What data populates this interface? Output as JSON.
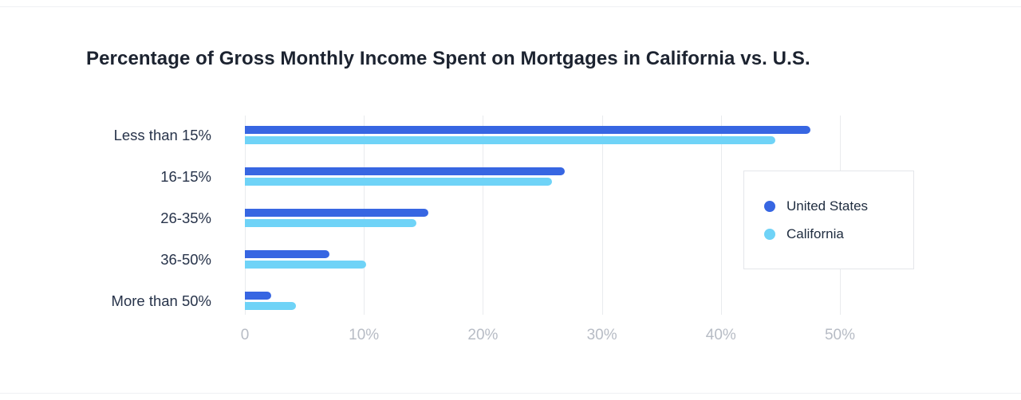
{
  "chart_data": {
    "type": "bar",
    "orientation": "horizontal",
    "title": "Percentage of Gross Monthly Income Spent on Mortgages in California vs. U.S.",
    "categories": [
      "Less than 15%",
      "16-15%",
      "26-35%",
      "36-50%",
      "More than 50%"
    ],
    "series": [
      {
        "name": "United States",
        "color": "#3766E2",
        "values": [
          47.5,
          26.9,
          15.4,
          7.1,
          2.2
        ]
      },
      {
        "name": "California",
        "color": "#6FD3F7",
        "values": [
          44.6,
          25.8,
          14.4,
          10.2,
          4.3
        ]
      }
    ],
    "xlim": [
      0,
      50
    ],
    "x_tick_labels": [
      "0",
      "10%",
      "20%",
      "30%",
      "40%",
      "50%"
    ],
    "x_tick_values": [
      0,
      10,
      20,
      30,
      40,
      50
    ],
    "grid": "vertical",
    "legend_position": "middle-right"
  }
}
